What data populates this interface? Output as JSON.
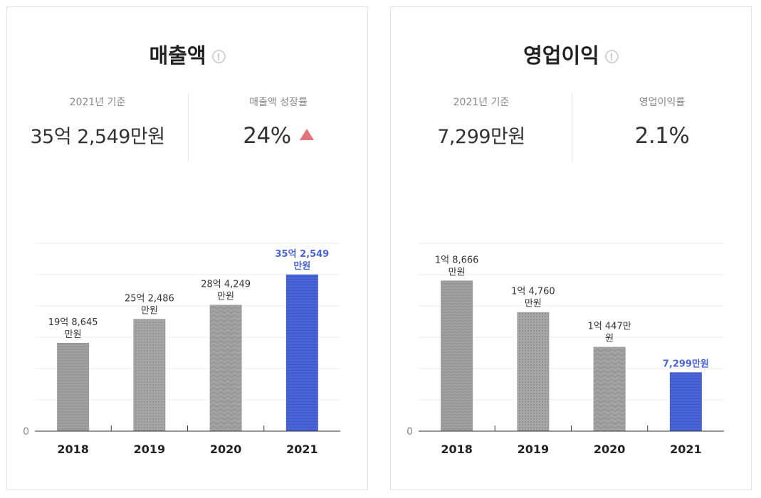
{
  "colors": {
    "highlight": "#4a65d8",
    "bar": "#a3a3a3",
    "up": "#e2737a"
  },
  "chart_data": [
    {
      "type": "bar",
      "title": "매출액",
      "categories": [
        "2018",
        "2019",
        "2020",
        "2021"
      ],
      "values": [
        198645,
        252486,
        284249,
        352549
      ],
      "unit": "만원",
      "data_labels": [
        "19억 8,645\n만원",
        "25억 2,486\n만원",
        "28억 4,249\n만원",
        "35억 2,549\n만원"
      ],
      "highlight_index": 3,
      "ylim": [
        0,
        490000
      ],
      "ytick_label": "0",
      "grid": true,
      "summary": {
        "base_label": "2021년 기준",
        "base_value": "35억 2,549만원",
        "rate_label": "매출액 성장률",
        "rate_value": "24%",
        "trend": "up"
      }
    },
    {
      "type": "bar",
      "title": "영업이익",
      "categories": [
        "2018",
        "2019",
        "2020",
        "2021"
      ],
      "values": [
        18666,
        14760,
        10447,
        7299
      ],
      "unit": "만원",
      "data_labels": [
        "1억 8,666\n만원",
        "1억 4,760\n만원",
        "1억 447만\n원",
        "7,299만원"
      ],
      "highlight_index": 3,
      "ylim": [
        0,
        27000
      ],
      "ytick_label": "0",
      "grid": true,
      "summary": {
        "base_label": "2021년 기준",
        "base_value": "7,299만원",
        "rate_label": "영업이익률",
        "rate_value": "2.1%"
      }
    }
  ]
}
